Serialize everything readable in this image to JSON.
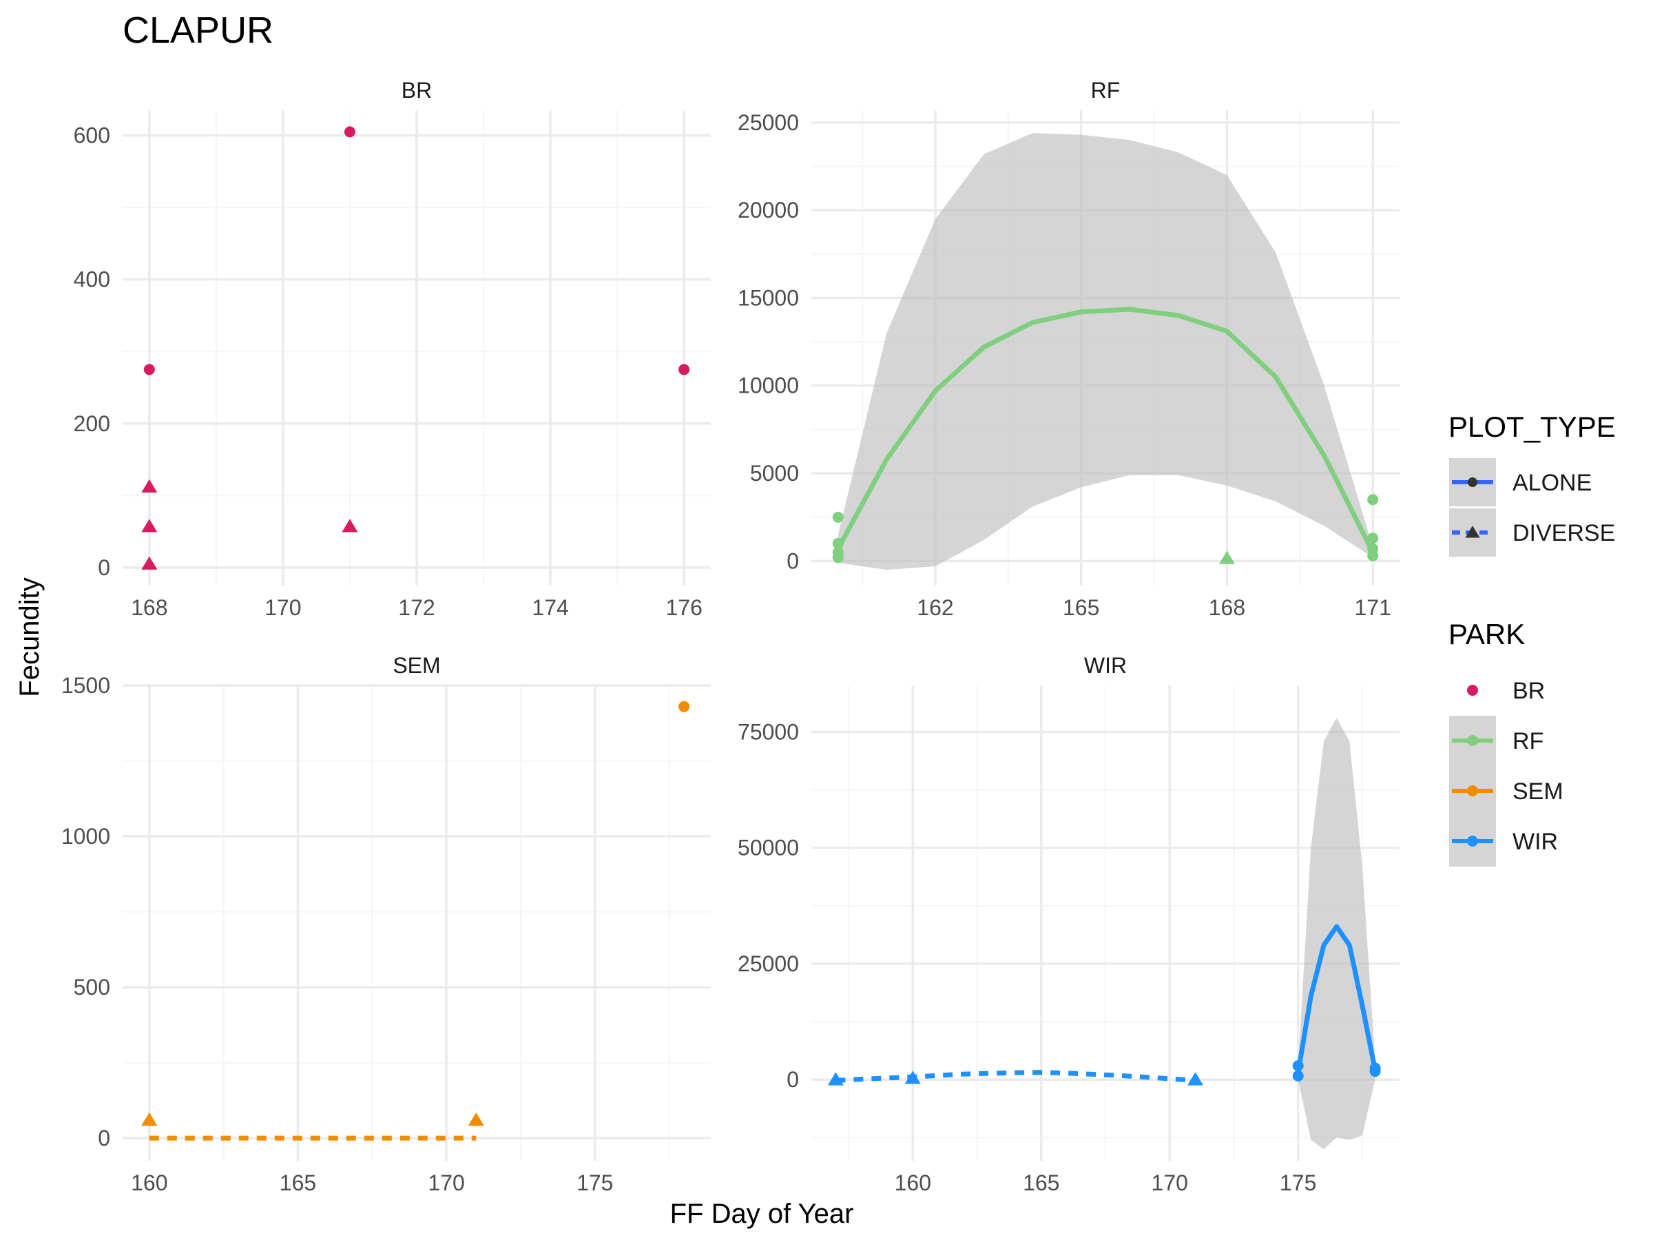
{
  "title": "CLAPUR",
  "colors": {
    "BR": "#d81b60",
    "RF": "#7fcf7f",
    "SEM": "#f08c00",
    "WIR": "#1e90ff",
    "band": "#bebebe",
    "grid_major": "#ebebeb",
    "grid_minor": "#f5f5f5"
  },
  "chart_data": {
    "type": "scatter",
    "title": "CLAPUR",
    "xlabel": "FF Day of Year",
    "ylabel": "Fecundity",
    "legend_placement": "right",
    "grid": true,
    "legend": {
      "plot_type": {
        "title": "PLOT_TYPE",
        "items": [
          {
            "label": "ALONE",
            "marker": "circle",
            "line": "solid"
          },
          {
            "label": "DIVERSE",
            "marker": "triangle",
            "line": "dashed"
          }
        ]
      },
      "park": {
        "title": "PARK",
        "items": [
          {
            "label": "BR",
            "color_key": "BR",
            "has_line": false
          },
          {
            "label": "RF",
            "color_key": "RF",
            "has_line": true
          },
          {
            "label": "SEM",
            "color_key": "SEM",
            "has_line": true
          },
          {
            "label": "WIR",
            "color_key": "WIR",
            "has_line": true
          }
        ]
      }
    },
    "panels": [
      {
        "name": "BR",
        "xlim": [
          167.6,
          176.4
        ],
        "ylim": [
          -25,
          635
        ],
        "xticks": [
          168,
          170,
          172,
          174,
          176
        ],
        "yticks": [
          0,
          200,
          400,
          600
        ],
        "points": [
          {
            "x": 168,
            "y": 275,
            "type": "ALONE"
          },
          {
            "x": 171,
            "y": 605,
            "type": "ALONE"
          },
          {
            "x": 176,
            "y": 275,
            "type": "ALONE"
          },
          {
            "x": 168,
            "y": 112,
            "type": "DIVERSE"
          },
          {
            "x": 168,
            "y": 57,
            "type": "DIVERSE"
          },
          {
            "x": 168,
            "y": 5,
            "type": "DIVERSE"
          },
          {
            "x": 171,
            "y": 57,
            "type": "DIVERSE"
          }
        ],
        "smooths": []
      },
      {
        "name": "RF",
        "xlim": [
          159.45,
          171.55
        ],
        "ylim": [
          -1400,
          25700
        ],
        "xticks": [
          162,
          165,
          168,
          171
        ],
        "yticks": [
          0,
          5000,
          10000,
          15000,
          20000,
          25000
        ],
        "points": [
          {
            "x": 160,
            "y": 2500,
            "type": "ALONE"
          },
          {
            "x": 160,
            "y": 1000,
            "type": "ALONE"
          },
          {
            "x": 160,
            "y": 500,
            "type": "ALONE"
          },
          {
            "x": 160,
            "y": 200,
            "type": "ALONE"
          },
          {
            "x": 171,
            "y": 3500,
            "type": "ALONE"
          },
          {
            "x": 171,
            "y": 1300,
            "type": "ALONE"
          },
          {
            "x": 171,
            "y": 700,
            "type": "ALONE"
          },
          {
            "x": 171,
            "y": 300,
            "type": "ALONE"
          },
          {
            "x": 168,
            "y": 150,
            "type": "DIVERSE"
          }
        ],
        "smooths": [
          {
            "type": "ALONE",
            "x": [
              160,
              161,
              162,
              163,
              164,
              165,
              166,
              167,
              168,
              169,
              170,
              171
            ],
            "y": [
              700,
              5800,
              9700,
              12200,
              13600,
              14200,
              14350,
              14000,
              13100,
              10500,
              6000,
              500
            ],
            "lower": [
              -100,
              -500,
              -300,
              1200,
              3100,
              4200,
              4900,
              4900,
              4300,
              3400,
              2000,
              200
            ],
            "upper": [
              1500,
              13000,
              19500,
              23200,
              24400,
              24300,
              24000,
              23300,
              22000,
              17600,
              10000,
              800
            ]
          }
        ]
      },
      {
        "name": "SEM",
        "xlim": [
          159.1,
          178.9
        ],
        "ylim": [
          -75,
          1500
        ],
        "xticks": [
          160,
          165,
          170,
          175
        ],
        "yticks": [
          0,
          500,
          1000,
          1500
        ],
        "points": [
          {
            "x": 178,
            "y": 1430,
            "type": "ALONE"
          },
          {
            "x": 160,
            "y": 60,
            "type": "DIVERSE"
          },
          {
            "x": 171,
            "y": 60,
            "type": "DIVERSE"
          }
        ],
        "smooths": [
          {
            "type": "DIVERSE",
            "x": [
              160,
              171
            ],
            "y": [
              0,
              0
            ]
          }
        ]
      },
      {
        "name": "WIR",
        "xlim": [
          156.05,
          178.95
        ],
        "ylim": [
          -17500,
          85000
        ],
        "xticks": [
          160,
          165,
          170,
          175
        ],
        "yticks": [
          0,
          25000,
          50000,
          75000
        ],
        "points": [
          {
            "x": 175,
            "y": 3000,
            "type": "ALONE"
          },
          {
            "x": 175,
            "y": 800,
            "type": "ALONE"
          },
          {
            "x": 178,
            "y": 2500,
            "type": "ALONE"
          },
          {
            "x": 178,
            "y": 1800,
            "type": "ALONE"
          },
          {
            "x": 157,
            "y": 0,
            "type": "DIVERSE"
          },
          {
            "x": 160,
            "y": 300,
            "type": "DIVERSE"
          },
          {
            "x": 171,
            "y": 0,
            "type": "DIVERSE"
          }
        ],
        "smooths": [
          {
            "type": "DIVERSE",
            "x": [
              157,
              158,
              160,
              162,
              164,
              165,
              166,
              168,
              170,
              171
            ],
            "y": [
              -200,
              100,
              600,
              1200,
              1500,
              1550,
              1400,
              900,
              200,
              -200
            ]
          },
          {
            "type": "ALONE",
            "x": [
              175,
              175.5,
              176,
              176.5,
              177,
              177.5,
              178
            ],
            "y": [
              1500,
              18000,
              29000,
              33000,
              29000,
              16000,
              2000
            ],
            "lower": [
              0,
              -13000,
              -15000,
              -12500,
              -13000,
              -12000,
              0
            ],
            "upper": [
              3000,
              50000,
              73000,
              78000,
              73000,
              46000,
              4000
            ]
          }
        ]
      }
    ]
  }
}
